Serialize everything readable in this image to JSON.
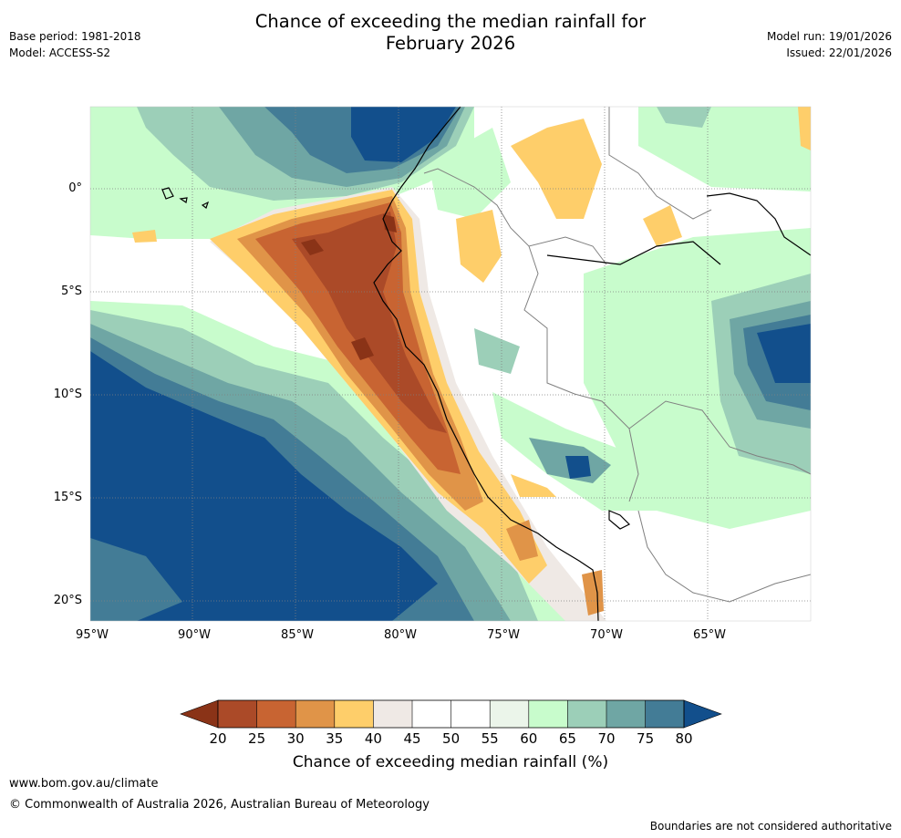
{
  "title_line1": "Chance of exceeding the median rainfall for",
  "title_line2": "February 2026",
  "meta": {
    "base_period": "Base period: 1981-2018",
    "model": "Model: ACCESS-S2",
    "model_run": "Model run: 19/01/2026",
    "issued": "Issued: 22/01/2026"
  },
  "axes": {
    "lon_ticks": [
      {
        "value": -95,
        "label": "95°W"
      },
      {
        "value": -90,
        "label": "90°W"
      },
      {
        "value": -85,
        "label": "85°W"
      },
      {
        "value": -80,
        "label": "80°W"
      },
      {
        "value": -75,
        "label": "75°W"
      },
      {
        "value": -70,
        "label": "70°W"
      },
      {
        "value": -65,
        "label": "65°W"
      }
    ],
    "lat_ticks": [
      {
        "value": 0,
        "label": "0°"
      },
      {
        "value": -5,
        "label": "5°S"
      },
      {
        "value": -10,
        "label": "10°S"
      },
      {
        "value": -15,
        "label": "15°S"
      },
      {
        "value": -20,
        "label": "20°S"
      }
    ]
  },
  "colorbar": {
    "title": "Chance of exceeding median rainfall (%)",
    "ticks": [
      "20",
      "25",
      "30",
      "35",
      "40",
      "45",
      "50",
      "55",
      "60",
      "65",
      "70",
      "75",
      "80"
    ],
    "colors": {
      "below20": "#8a3317",
      "c20_25": "#ab4a28",
      "c25_30": "#c86432",
      "c30_35": "#e09448",
      "c35_40": "#fece6a",
      "c40_45": "#efe9e5",
      "c45_50": "#ffffff",
      "c50_55": "#ffffff",
      "c55_60": "#ebf5ea",
      "c60_65": "#c8fccc",
      "c65_70": "#9ccfb8",
      "c70_75": "#6fa6a4",
      "c75_80": "#437c96",
      "above80": "#124f8c"
    }
  },
  "footer": {
    "url": "www.bom.gov.au/climate",
    "copyright": "© Commonwealth of Australia 2026, Australian Bureau of Meteorology",
    "disclaimer": "Boundaries are not considered authoritative"
  }
}
